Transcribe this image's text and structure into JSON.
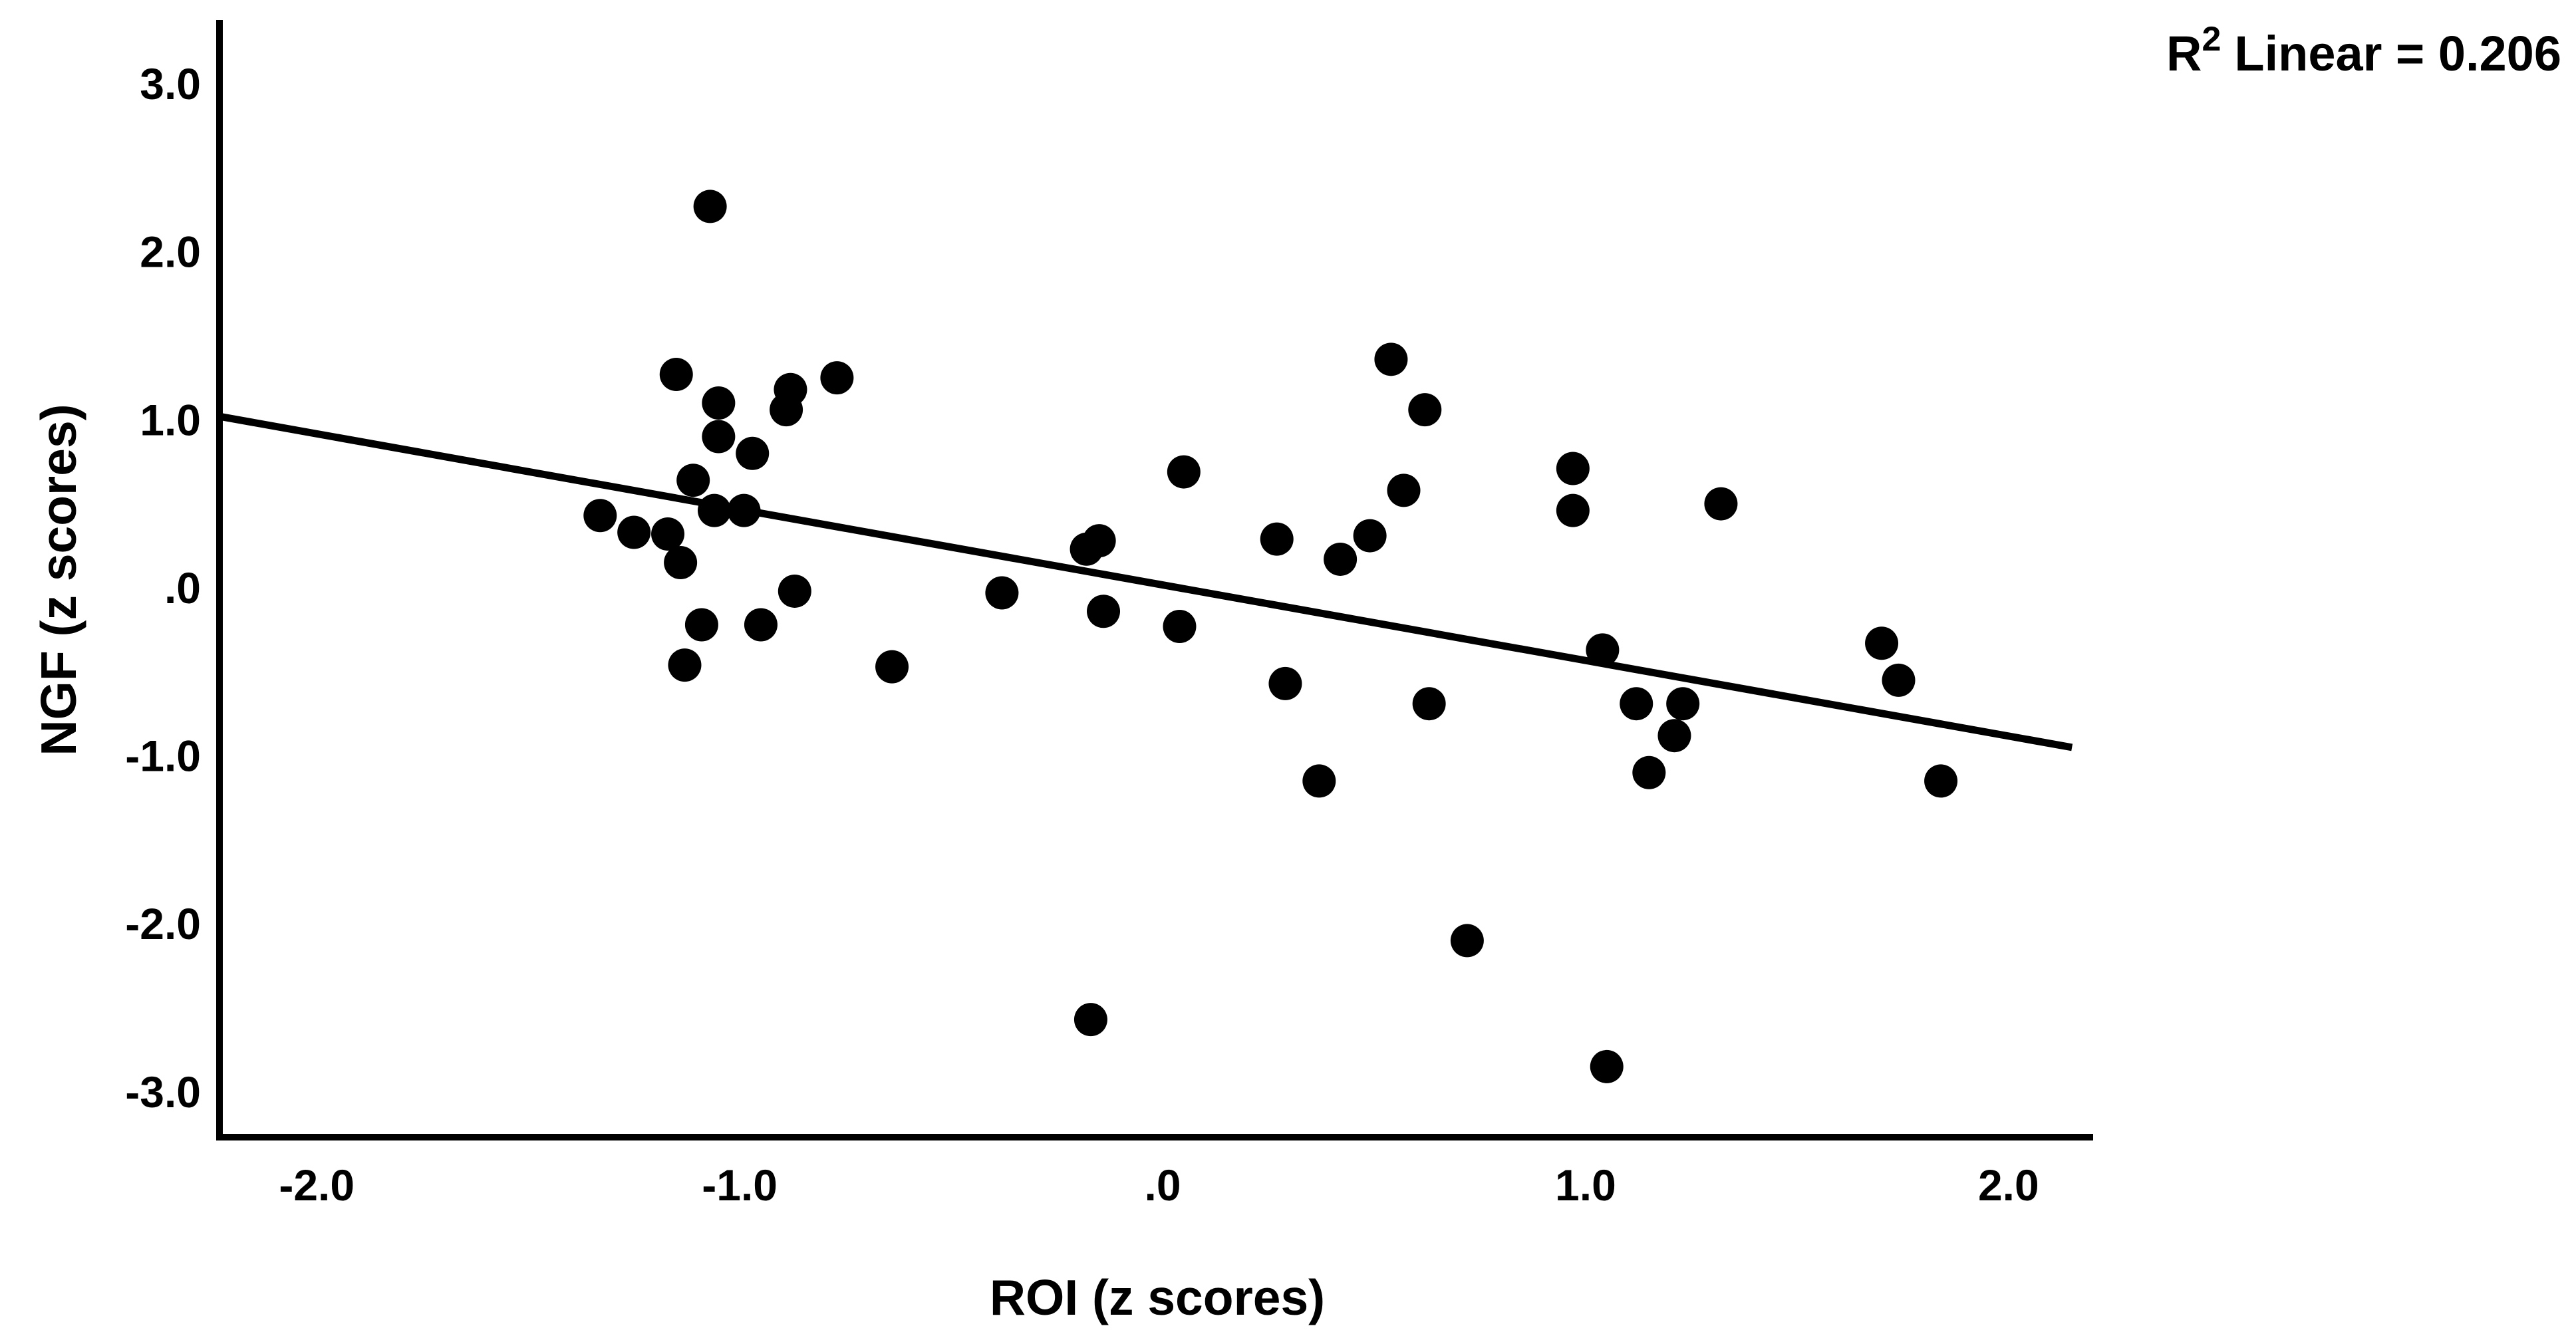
{
  "annotation": {
    "r": "R",
    "exponent": "2",
    "text": "Linear = 0.206"
  },
  "chart_data": {
    "type": "scatter",
    "title": "",
    "xlabel": "ROI (z scores)",
    "ylabel": "NGF (z scores)",
    "legend": "none",
    "grid": false,
    "point_color": "#000000",
    "line_color": "#000000",
    "xlim": [
      -2.23,
      2.2
    ],
    "ylim": [
      -3.27,
      3.38
    ],
    "x_ticks": {
      "values": [
        -2.0,
        -1.0,
        0.0,
        1.0,
        2.0
      ],
      "labels": [
        "-2.0",
        "-1.0",
        ".0",
        "1.0",
        "2.0"
      ]
    },
    "y_ticks": {
      "values": [
        3.0,
        2.0,
        1.0,
        0.0,
        -1.0,
        -2.0,
        -3.0
      ],
      "labels": [
        "3.0",
        "2.0",
        "1.0",
        ".0",
        "-1.0",
        "-2.0",
        "-3.0"
      ]
    },
    "points": [
      [
        -1.07,
        2.27
      ],
      [
        -1.15,
        1.27
      ],
      [
        -0.77,
        1.25
      ],
      [
        -0.88,
        1.18
      ],
      [
        -1.05,
        1.1
      ],
      [
        -0.89,
        1.06
      ],
      [
        -1.05,
        0.9
      ],
      [
        -0.97,
        0.8
      ],
      [
        -1.11,
        0.64
      ],
      [
        -1.06,
        0.46
      ],
      [
        -0.99,
        0.46
      ],
      [
        -1.33,
        0.43
      ],
      [
        -1.25,
        0.33
      ],
      [
        -1.17,
        0.32
      ],
      [
        -1.14,
        0.15
      ],
      [
        -0.87,
        -0.02
      ],
      [
        -1.09,
        -0.22
      ],
      [
        -0.95,
        -0.22
      ],
      [
        -1.13,
        -0.46
      ],
      [
        -0.64,
        -0.47
      ],
      [
        -0.38,
        -0.03
      ],
      [
        -0.18,
        0.23
      ],
      [
        -0.15,
        0.28
      ],
      [
        -0.14,
        -0.14
      ],
      [
        0.05,
        0.69
      ],
      [
        0.04,
        -0.23
      ],
      [
        0.27,
        0.29
      ],
      [
        0.29,
        -0.57
      ],
      [
        0.42,
        0.17
      ],
      [
        0.49,
        0.31
      ],
      [
        0.54,
        1.36
      ],
      [
        0.57,
        0.58
      ],
      [
        0.62,
        1.06
      ],
      [
        0.63,
        -0.69
      ],
      [
        0.37,
        -1.15
      ],
      [
        0.72,
        -2.1
      ],
      [
        -0.17,
        -2.57
      ],
      [
        1.05,
        -2.85
      ],
      [
        0.97,
        0.71
      ],
      [
        0.97,
        0.46
      ],
      [
        1.04,
        -0.37
      ],
      [
        1.12,
        -0.69
      ],
      [
        1.15,
        -1.1
      ],
      [
        1.21,
        -0.88
      ],
      [
        1.23,
        -0.69
      ],
      [
        1.32,
        0.5
      ],
      [
        1.7,
        -0.33
      ],
      [
        1.74,
        -0.55
      ],
      [
        1.84,
        -1.15
      ]
    ],
    "fit_line": {
      "x1": -2.23,
      "y1": 1.02,
      "x2": 2.15,
      "y2": -0.95,
      "r2": 0.206
    }
  }
}
